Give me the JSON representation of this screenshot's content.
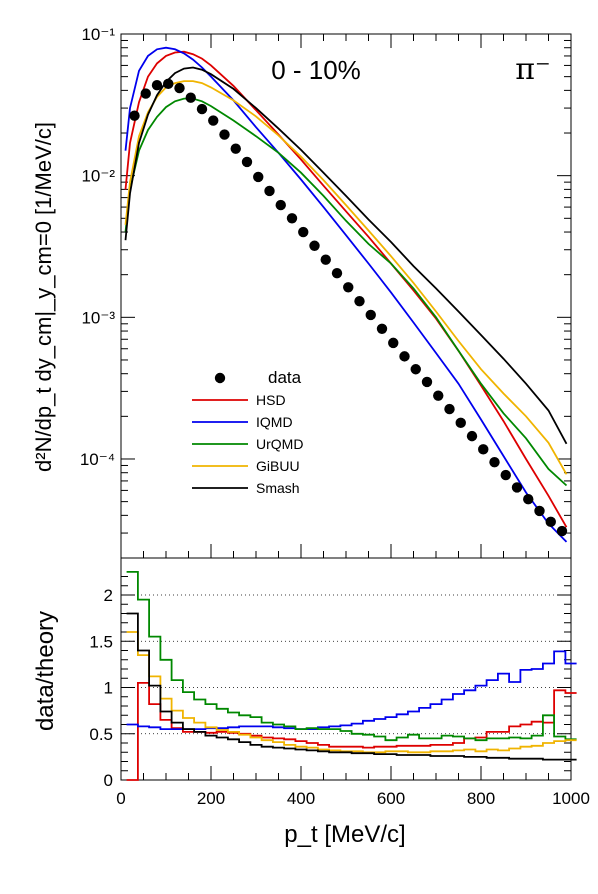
{
  "chart_data": [
    {
      "type": "line",
      "title": "0 - 10%",
      "particle_label": "π⁻",
      "ylabel": "d²N/dp_t dy_cm|_y_cm=0  [1/MeV/c]",
      "yscale": "log",
      "xlim": [
        0,
        1000
      ],
      "ylim": [
        2e-05,
        0.1
      ],
      "y_tick_labels": [
        "10⁻⁴",
        "10⁻³",
        "10⁻²",
        "10⁻¹"
      ],
      "legend": {
        "placement": "middle-left",
        "entries": [
          "data",
          "HSD",
          "IQMD",
          "UrQMD",
          "GiBUU",
          "Smash"
        ]
      },
      "data": {
        "name": "data",
        "x": [
          30,
          55,
          80,
          105,
          130,
          155,
          180,
          205,
          230,
          255,
          280,
          305,
          330,
          355,
          380,
          405,
          430,
          455,
          480,
          505,
          530,
          555,
          580,
          605,
          630,
          655,
          680,
          705,
          730,
          755,
          780,
          805,
          830,
          855,
          880,
          905,
          930,
          955,
          980
        ],
        "y": [
          0.0265,
          0.038,
          0.0435,
          0.0445,
          0.0415,
          0.0355,
          0.0295,
          0.0245,
          0.0195,
          0.0155,
          0.0125,
          0.0098,
          0.0078,
          0.0062,
          0.005,
          0.004,
          0.0032,
          0.00255,
          0.00205,
          0.00163,
          0.0013,
          0.00104,
          0.00083,
          0.00066,
          0.00053,
          0.00043,
          0.00035,
          0.00028,
          0.000225,
          0.00018,
          0.000145,
          0.000117,
          9.5e-05,
          7.7e-05,
          6.3e-05,
          5.2e-05,
          4.3e-05,
          3.6e-05,
          3.1e-05
        ]
      },
      "series": [
        {
          "name": "HSD",
          "color": "#dd0000",
          "x": [
            10,
            20,
            40,
            60,
            80,
            100,
            120,
            140,
            160,
            180,
            200,
            250,
            300,
            350,
            400,
            450,
            500,
            550,
            600,
            650,
            700,
            750,
            800,
            850,
            900,
            950,
            990
          ],
          "y": [
            0.008,
            0.017,
            0.033,
            0.05,
            0.062,
            0.07,
            0.074,
            0.075,
            0.072,
            0.067,
            0.06,
            0.043,
            0.029,
            0.0195,
            0.013,
            0.0085,
            0.0056,
            0.0037,
            0.0024,
            0.00155,
            0.00098,
            0.00058,
            0.00033,
            0.000185,
            0.0001,
            5.5e-05,
            3.3e-05
          ]
        },
        {
          "name": "IQMD",
          "color": "#0000ee",
          "x": [
            10,
            20,
            40,
            60,
            80,
            100,
            120,
            140,
            160,
            180,
            200,
            250,
            300,
            350,
            400,
            450,
            500,
            550,
            600,
            650,
            700,
            750,
            800,
            850,
            900,
            950,
            990
          ],
          "y": [
            0.015,
            0.03,
            0.055,
            0.07,
            0.078,
            0.08,
            0.078,
            0.073,
            0.066,
            0.058,
            0.05,
            0.034,
            0.022,
            0.0145,
            0.0094,
            0.006,
            0.0038,
            0.0024,
            0.0015,
            0.00092,
            0.00056,
            0.00034,
            0.00019,
            0.000105,
            5.8e-05,
            3.5e-05,
            2.6e-05
          ]
        },
        {
          "name": "UrQMD",
          "color": "#008800",
          "x": [
            10,
            20,
            40,
            60,
            80,
            100,
            120,
            140,
            160,
            180,
            200,
            250,
            300,
            350,
            400,
            450,
            500,
            550,
            600,
            650,
            700,
            750,
            800,
            850,
            900,
            950,
            990
          ],
          "y": [
            0.004,
            0.008,
            0.015,
            0.021,
            0.026,
            0.0305,
            0.0335,
            0.035,
            0.035,
            0.0335,
            0.031,
            0.0245,
            0.019,
            0.0145,
            0.0105,
            0.0072,
            0.0048,
            0.0033,
            0.0024,
            0.0016,
            0.001,
            0.00058,
            0.00034,
            0.00021,
            0.00014,
            8.5e-05,
            6.5e-05
          ]
        },
        {
          "name": "GiBUU",
          "color": "#f0b400",
          "x": [
            10,
            20,
            40,
            60,
            80,
            100,
            120,
            140,
            160,
            180,
            200,
            250,
            300,
            350,
            400,
            450,
            500,
            550,
            600,
            650,
            700,
            750,
            800,
            850,
            900,
            950,
            990
          ],
          "y": [
            0.0045,
            0.009,
            0.019,
            0.028,
            0.036,
            0.042,
            0.045,
            0.0465,
            0.0465,
            0.045,
            0.042,
            0.034,
            0.0262,
            0.0192,
            0.0136,
            0.0093,
            0.0062,
            0.0041,
            0.0027,
            0.00175,
            0.0011,
            0.00068,
            0.00043,
            0.00029,
            0.0002,
            0.00013,
            7.8e-05
          ]
        },
        {
          "name": "Smash",
          "color": "#000000",
          "x": [
            10,
            20,
            40,
            60,
            80,
            100,
            120,
            140,
            160,
            180,
            200,
            250,
            300,
            350,
            400,
            450,
            500,
            550,
            600,
            650,
            700,
            750,
            800,
            850,
            900,
            950,
            990
          ],
          "y": [
            0.0035,
            0.0075,
            0.017,
            0.027,
            0.037,
            0.046,
            0.053,
            0.057,
            0.058,
            0.056,
            0.052,
            0.041,
            0.03,
            0.0215,
            0.0152,
            0.0105,
            0.0072,
            0.0049,
            0.0034,
            0.0023,
            0.0016,
            0.0011,
            0.00075,
            0.00051,
            0.00034,
            0.00022,
            0.000128
          ]
        }
      ]
    },
    {
      "type": "line",
      "xlabel": "p_t  [MeV/c]",
      "ylabel": "data/theory",
      "xlim": [
        0,
        1000
      ],
      "ylim": [
        0,
        2.4
      ],
      "x_ticks": [
        0,
        200,
        400,
        600,
        800,
        1000
      ],
      "y_ticks": [
        0,
        0.5,
        1,
        1.5,
        2
      ],
      "grid": "horizontal dotted at 0.5, 1, 1.5, 2",
      "x": [
        25,
        50,
        75,
        100,
        125,
        150,
        175,
        200,
        225,
        250,
        275,
        300,
        325,
        350,
        375,
        400,
        425,
        450,
        475,
        500,
        525,
        550,
        575,
        600,
        625,
        650,
        675,
        700,
        725,
        750,
        775,
        800,
        825,
        850,
        875,
        900,
        925,
        950,
        975,
        1000
      ],
      "series": [
        {
          "name": "HSD",
          "color": "#dd0000",
          "values": [
            0,
            1.05,
            0.82,
            0.65,
            0.56,
            0.52,
            0.52,
            0.51,
            0.52,
            0.51,
            0.5,
            0.48,
            0.46,
            0.45,
            0.44,
            0.42,
            0.4,
            0.38,
            0.36,
            0.36,
            0.36,
            0.35,
            0.36,
            0.36,
            0.37,
            0.37,
            0.37,
            0.38,
            0.38,
            0.4,
            0.45,
            0.46,
            0.52,
            0.52,
            0.58,
            0.6,
            0.63,
            0.62,
            0.97,
            0.94
          ]
        },
        {
          "name": "IQMD",
          "color": "#0000ee",
          "values": [
            0.6,
            0.58,
            0.57,
            0.55,
            0.55,
            0.55,
            0.55,
            0.56,
            0.56,
            0.57,
            0.58,
            0.58,
            0.58,
            0.57,
            0.56,
            0.55,
            0.55,
            0.57,
            0.58,
            0.59,
            0.61,
            0.64,
            0.66,
            0.68,
            0.71,
            0.74,
            0.78,
            0.82,
            0.87,
            0.93,
            0.97,
            1.02,
            1.08,
            1.15,
            1.06,
            1.19,
            1.2,
            1.26,
            1.39,
            1.26
          ]
        },
        {
          "name": "UrQMD",
          "color": "#008800",
          "values": [
            2.25,
            1.95,
            1.55,
            1.3,
            1.08,
            0.95,
            0.87,
            0.82,
            0.77,
            0.73,
            0.7,
            0.68,
            0.62,
            0.6,
            0.58,
            0.55,
            0.56,
            0.55,
            0.55,
            0.53,
            0.5,
            0.49,
            0.47,
            0.43,
            0.46,
            0.49,
            0.45,
            0.45,
            0.48,
            0.47,
            0.45,
            0.43,
            0.45,
            0.45,
            0.46,
            0.45,
            0.48,
            0.7,
            0.47,
            0.44
          ]
        },
        {
          "name": "GiBUU",
          "color": "#f0b400",
          "values": [
            1.6,
            1.35,
            1.12,
            0.88,
            0.75,
            0.67,
            0.62,
            0.57,
            0.54,
            0.52,
            0.49,
            0.46,
            0.43,
            0.41,
            0.38,
            0.36,
            0.35,
            0.33,
            0.32,
            0.31,
            0.31,
            0.3,
            0.3,
            0.31,
            0.31,
            0.3,
            0.3,
            0.31,
            0.31,
            0.32,
            0.33,
            0.31,
            0.33,
            0.32,
            0.34,
            0.36,
            0.37,
            0.4,
            0.42,
            0.43
          ]
        },
        {
          "name": "Smash",
          "color": "#000000",
          "values": [
            1.8,
            1.4,
            1.02,
            0.74,
            0.62,
            0.55,
            0.52,
            0.48,
            0.46,
            0.44,
            0.41,
            0.38,
            0.36,
            0.35,
            0.34,
            0.33,
            0.32,
            0.31,
            0.3,
            0.3,
            0.29,
            0.29,
            0.28,
            0.28,
            0.27,
            0.27,
            0.27,
            0.26,
            0.26,
            0.26,
            0.25,
            0.25,
            0.24,
            0.24,
            0.23,
            0.23,
            0.23,
            0.22,
            0.22,
            0.22
          ]
        }
      ]
    }
  ]
}
